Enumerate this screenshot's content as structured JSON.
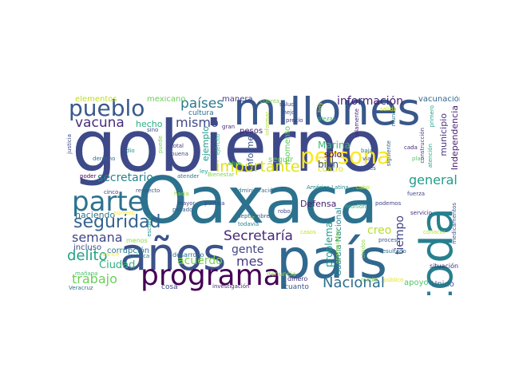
{
  "words": [
    {
      "text": "gobierno",
      "color": "#3e4989"
    },
    {
      "text": "Oaxaca",
      "color": "#2c728e"
    },
    {
      "text": "país",
      "color": "#31688e"
    },
    {
      "text": "millones",
      "color": "#38588c"
    },
    {
      "text": "años",
      "color": "#3b528b"
    },
    {
      "text": "toda",
      "color": "#277f8e"
    },
    {
      "text": "programa",
      "color": "#440154"
    },
    {
      "text": "persona",
      "color": "#fde725"
    },
    {
      "text": "parte",
      "color": "#2c728e"
    },
    {
      "text": "pueblo",
      "color": "#38598c"
    },
    {
      "text": "seguridad",
      "color": "#33638d"
    },
    {
      "text": "vacuna",
      "color": "#472d7b"
    },
    {
      "text": "Secretaría",
      "color": "#482878"
    },
    {
      "text": "importante",
      "color": "#dde318"
    },
    {
      "text": "Nacional",
      "color": "#2d708e"
    },
    {
      "text": "semana",
      "color": "#3f4788"
    },
    {
      "text": "delito",
      "color": "#20a386"
    },
    {
      "text": "trabajo",
      "color": "#6ece58"
    },
    {
      "text": "países",
      "color": "#2a788e"
    },
    {
      "text": "general",
      "color": "#1f9e89"
    },
    {
      "text": "mismo",
      "color": "#3f4889"
    },
    {
      "text": "información",
      "color": "#482475"
    },
    {
      "text": "mes",
      "color": "#443983"
    },
    {
      "text": "acuerdo",
      "color": "#7ad151"
    },
    {
      "text": "creo",
      "color": "#b5de2b"
    },
    {
      "text": "tiempo",
      "color": "#404387"
    },
    {
      "text": "secretario",
      "color": "#25838e"
    },
    {
      "text": "gente",
      "color": "#404688"
    },
    {
      "text": "Ciudad",
      "color": "#2db27d"
    },
    {
      "text": "problema",
      "color": "#1f988b"
    },
    {
      "text": "Guardia Nacional",
      "color": "#25848e"
    },
    {
      "text": "Independencia",
      "color": "#481f70"
    },
    {
      "text": "municipio",
      "color": "#46317e"
    },
    {
      "text": "Marina",
      "color": "#3dbc74"
    },
    {
      "text": "sólo",
      "color": "#440154"
    },
    {
      "text": "bien",
      "color": "#39558c"
    },
    {
      "text": "Defensa",
      "color": "#482071"
    },
    {
      "text": "hecho",
      "color": "#29af7f"
    },
    {
      "text": "haciendo",
      "color": "#2a768e"
    },
    {
      "text": "incluso",
      "color": "#3e4a89"
    },
    {
      "text": "corrupción",
      "color": "#2a788e"
    },
    {
      "text": "vacunación",
      "color": "#31668e"
    },
    {
      "text": "elementos",
      "color": "#bddf26"
    },
    {
      "text": "mexicano",
      "color": "#6ccd5a"
    },
    {
      "text": "manera",
      "color": "#433e85"
    },
    {
      "text": "ejemplo",
      "color": "#1f9a8a"
    },
    {
      "text": "informe",
      "color": "#3b518b"
    },
    {
      "text": "momento",
      "color": "#5ec962"
    },
    {
      "text": "seguir",
      "color": "#6ccd5a"
    },
    {
      "text": "apoyo",
      "color": "#52c569"
    },
    {
      "text": "Unido",
      "color": "#32658e"
    },
    {
      "text": "cultura",
      "color": "#2e6d8e"
    },
    {
      "text": "pesos",
      "color": "#482576"
    },
    {
      "text": "desarrollo",
      "color": "#2c728e"
    },
    {
      "text": "cosa",
      "color": "#3f4788"
    },
    {
      "text": "cuanto",
      "color": "#39568c"
    },
    {
      "text": "dinero",
      "color": "#46337f"
    },
    {
      "text": "denuncia",
      "color": "#98d83e"
    },
    {
      "text": "investigación",
      "color": "#482878"
    },
    {
      "text": "menos",
      "color": "#8fd744"
    },
    {
      "text": "respecto",
      "color": "#3b528b"
    },
    {
      "text": "hacia",
      "color": "#8fd744"
    },
    {
      "text": "mayor",
      "color": "#414487"
    },
    {
      "text": "política",
      "color": "#3e4989"
    },
    {
      "text": "pasado",
      "color": "#355f8d"
    },
    {
      "text": "número",
      "color": "#fde725"
    },
    {
      "text": "América Latina",
      "color": "#23888e"
    },
    {
      "text": "cabo",
      "color": "#bade28"
    },
    {
      "text": "fuerza",
      "color": "#3f4889"
    },
    {
      "text": "servicio",
      "color": "#472f7d"
    },
    {
      "text": "cinco",
      "color": "#453781"
    },
    {
      "text": "poder",
      "color": "#440154"
    },
    {
      "text": "atender",
      "color": "#2a788e"
    },
    {
      "text": "ley",
      "color": "#1fa088"
    },
    {
      "text": "Bienestar",
      "color": "#7fd34e"
    },
    {
      "text": "administración",
      "color": "#2e6e8e"
    },
    {
      "text": "gran",
      "color": "#482878"
    },
    {
      "text": "salud",
      "color": "#414287"
    },
    {
      "text": "mejor",
      "color": "#3b528b"
    },
    {
      "text": "precio",
      "color": "#453882"
    },
    {
      "text": "piezas",
      "color": "#3aba76"
    },
    {
      "text": "solamente",
      "color": "#482475"
    },
    {
      "text": "mundo",
      "color": "#2b748e"
    },
    {
      "text": "primero",
      "color": "#1fa287"
    },
    {
      "text": "hoy",
      "color": "#d2e21b"
    },
    {
      "text": "total",
      "color": "#433d84"
    },
    {
      "text": "buena",
      "color": "#3d4d8a"
    },
    {
      "text": "dio",
      "color": "#20928c"
    },
    {
      "text": "derecho",
      "color": "#2e6e8e"
    },
    {
      "text": "justicia",
      "color": "#3e4989"
    },
    {
      "text": "sino",
      "color": "#3d4e8a"
    },
    {
      "text": "puede",
      "color": "#75d054"
    },
    {
      "text": "mañana",
      "color": "#4ac16d"
    },
    {
      "text": "Veracruz",
      "color": "#2d718e"
    },
    {
      "text": "publica",
      "color": "#2c728e"
    },
    {
      "text": "avance",
      "color": "#fde725"
    },
    {
      "text": "escuela",
      "color": "#1f968b"
    },
    {
      "text": "cada",
      "color": "#472c7a"
    },
    {
      "text": "baja",
      "color": "#2a788e"
    },
    {
      "text": "vía",
      "color": "#3c4f8a"
    },
    {
      "text": "plan",
      "color": "#5ac864"
    },
    {
      "text": "lunes",
      "color": "#3b528b"
    },
    {
      "text": "siguiente",
      "color": "#34618d"
    },
    {
      "text": "construcción",
      "color": "#433e85"
    },
    {
      "text": "atención",
      "color": "#22a785"
    },
    {
      "text": "reunión",
      "color": "#37b878"
    },
    {
      "text": "podemos",
      "color": "#404588"
    },
    {
      "text": "resultado",
      "color": "#2f6b8e"
    },
    {
      "text": "proceso",
      "color": "#3a548c"
    },
    {
      "text": "operaciones",
      "color": "#84d44b"
    },
    {
      "text": "cuatro",
      "color": "#d8e219"
    },
    {
      "text": "robo",
      "color": "#3f4788"
    },
    {
      "text": "septiembre",
      "color": "#33638d"
    },
    {
      "text": "todavía",
      "color": "#26828e"
    },
    {
      "text": "casos",
      "color": "#c2df23"
    },
    {
      "text": "Unidos",
      "color": "#8bd646"
    },
    {
      "text": "medio",
      "color": "#89d548"
    },
    {
      "text": "público",
      "color": "#e5e419"
    },
    {
      "text": "situación",
      "color": "#472a7a"
    },
    {
      "text": "medicamentos",
      "color": "#3b528b"
    },
    {
      "text": "conocer",
      "color": "#ade028"
    },
    {
      "text": "ir",
      "color": "#8fd744"
    },
    {
      "text": "ejército",
      "color": "#2fb47c"
    },
    {
      "text": "obra",
      "color": "#4ac16d"
    },
    {
      "text": "informar",
      "color": "#addc30"
    },
    {
      "text": "cuenta",
      "color": "#7cd250"
    },
    {
      "text": "salida",
      "color": "#d0e11c"
    }
  ]
}
